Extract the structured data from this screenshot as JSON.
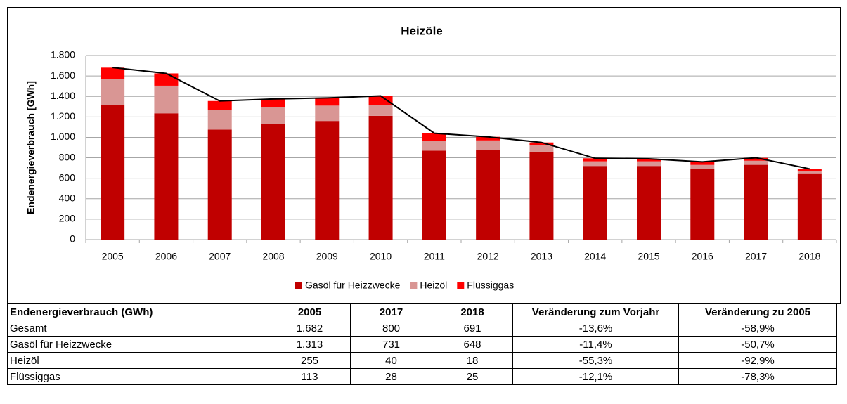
{
  "chart_data": {
    "type": "stacked_bar_line",
    "title": "Heizöle",
    "y_label": "Endenergieverbrauch [GWh]",
    "categories": [
      "2005",
      "2006",
      "2007",
      "2008",
      "2009",
      "2010",
      "2011",
      "2012",
      "2013",
      "2014",
      "2015",
      "2016",
      "2017",
      "2018"
    ],
    "series": [
      {
        "name": "Gasöl für Heizzwecke",
        "color": "#c00000",
        "values": [
          1313,
          1235,
          1075,
          1130,
          1160,
          1210,
          870,
          875,
          860,
          720,
          720,
          690,
          731,
          648
        ]
      },
      {
        "name": "Heizöl",
        "color": "#d99694",
        "values": [
          255,
          270,
          190,
          165,
          150,
          105,
          95,
          95,
          65,
          45,
          45,
          40,
          40,
          18
        ]
      },
      {
        "name": "Flüssiggas",
        "color": "#ff0000",
        "values": [
          113,
          120,
          90,
          80,
          75,
          90,
          75,
          35,
          25,
          30,
          25,
          30,
          28,
          25
        ]
      },
      {
        "type": "line",
        "color": "#000000",
        "values": [
          1682,
          1625,
          1355,
          1375,
          1385,
          1405,
          1040,
          1005,
          950,
          795,
          790,
          760,
          800,
          691
        ]
      }
    ],
    "ylim": [
      0,
      1800
    ],
    "yticks": [
      0,
      200,
      400,
      600,
      800,
      {
        "value": 1000,
        "label": "1.000"
      },
      {
        "value": 1200,
        "label": "1.200"
      },
      {
        "value": 1400,
        "label": "1.400"
      },
      {
        "value": 1600,
        "label": "1.600"
      },
      {
        "value": 1800,
        "label": "1.800"
      }
    ],
    "grid": true,
    "legend": "bottom"
  },
  "table": {
    "header": [
      "Endenergieverbrauch (GWh)",
      "2005",
      "2017",
      "2018",
      "Veränderung zum Vorjahr",
      "Veränderung zu 2005"
    ],
    "rows": [
      [
        "Gesamt",
        "1.682",
        "800",
        "691",
        "-13,6%",
        "-58,9%"
      ],
      [
        "Gasöl für Heizzwecke",
        "1.313",
        "731",
        "648",
        "-11,4%",
        "-50,7%"
      ],
      [
        "Heizöl",
        "255",
        "40",
        "18",
        "-55,3%",
        "-92,9%"
      ],
      [
        "Flüssiggas",
        "113",
        "28",
        "25",
        "-12,1%",
        "-78,3%"
      ]
    ]
  }
}
